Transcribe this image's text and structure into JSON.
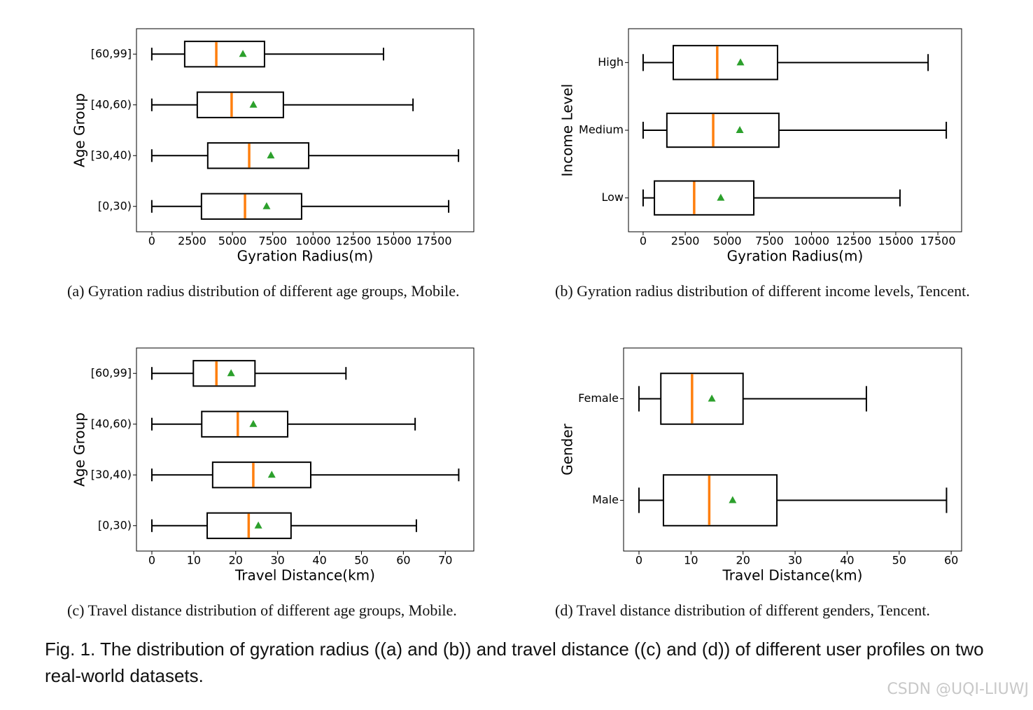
{
  "chart_data": [
    {
      "type": "box",
      "orientation": "horizontal",
      "x_label": "Gyration Radius(m)",
      "y_label": "Age Group",
      "caption": "(a)  Gyration radius distribution of different age groups, Mobile.",
      "categories": [
        "[0,30)",
        "[30,40)",
        "[40,60)",
        "[60,99]"
      ],
      "boxes": [
        {
          "min": 0,
          "q1": 3080,
          "median": 5780,
          "q3": 9290,
          "max": 18410,
          "mean": 7120
        },
        {
          "min": 0,
          "q1": 3470,
          "median": 6040,
          "q3": 9730,
          "max": 19020,
          "mean": 7380
        },
        {
          "min": 0,
          "q1": 2820,
          "median": 4950,
          "q3": 8160,
          "max": 16200,
          "mean": 6300
        },
        {
          "min": 0,
          "q1": 2040,
          "median": 4000,
          "q3": 6990,
          "max": 14370,
          "mean": 5650
        }
      ],
      "xlim": [
        -950,
        19970
      ],
      "xticks": [
        0,
        2500,
        5000,
        7500,
        10000,
        12500,
        15000,
        17500
      ],
      "box_color": "#000000",
      "median_color": "#ff7f0e",
      "mean_color": "#2ca02c"
    },
    {
      "type": "box",
      "orientation": "horizontal",
      "x_label": "Gyration Radius(m)",
      "y_label": "Income Level",
      "caption": "(b)  Gyration radius distribution of different income levels, Tencent.",
      "categories": [
        "Low",
        "Medium",
        "High"
      ],
      "boxes": [
        {
          "min": 0,
          "q1": 670,
          "median": 3030,
          "q3": 6570,
          "max": 15250,
          "mean": 4610
        },
        {
          "min": 0,
          "q1": 1410,
          "median": 4160,
          "q3": 8060,
          "max": 18000,
          "mean": 5740
        },
        {
          "min": 0,
          "q1": 1790,
          "median": 4400,
          "q3": 7980,
          "max": 16920,
          "mean": 5780
        }
      ],
      "xlim": [
        -870,
        18910
      ],
      "xticks": [
        0,
        2500,
        5000,
        7500,
        10000,
        12500,
        15000,
        17500
      ],
      "box_color": "#000000",
      "median_color": "#ff7f0e",
      "mean_color": "#2ca02c"
    },
    {
      "type": "box",
      "orientation": "horizontal",
      "x_label": "Travel Distance(km)",
      "y_label": "Age Group",
      "caption": "(c)  Travel distance distribution of different age groups, Mobile.",
      "categories": [
        "[0,30)",
        "[30,40)",
        "[40,60)",
        "[60,99]"
      ],
      "boxes": [
        {
          "min": 0,
          "q1": 13.2,
          "median": 23.1,
          "q3": 33.2,
          "max": 63.1,
          "mean": 25.4
        },
        {
          "min": 0,
          "q1": 14.5,
          "median": 24.2,
          "q3": 37.9,
          "max": 73.2,
          "mean": 28.6
        },
        {
          "min": 0,
          "q1": 11.9,
          "median": 20.5,
          "q3": 32.4,
          "max": 62.8,
          "mean": 24.2
        },
        {
          "min": 0,
          "q1": 9.9,
          "median": 15.4,
          "q3": 24.6,
          "max": 46.3,
          "mean": 18.9
        }
      ],
      "xlim": [
        -3.67,
        76.8
      ],
      "xticks": [
        0,
        10,
        20,
        30,
        40,
        50,
        60,
        70
      ],
      "box_color": "#000000",
      "median_color": "#ff7f0e",
      "mean_color": "#2ca02c"
    },
    {
      "type": "box",
      "orientation": "horizontal",
      "x_label": "Travel Distance(km)",
      "y_label": "Gender",
      "caption": "(d)  Travel distance distribution of different genders, Tencent.",
      "categories": [
        "Male",
        "Female"
      ],
      "boxes": [
        {
          "min": 0,
          "q1": 4.7,
          "median": 13.5,
          "q3": 26.5,
          "max": 59.1,
          "mean": 18.0
        },
        {
          "min": 0,
          "q1": 4.2,
          "median": 10.2,
          "q3": 20.0,
          "max": 43.7,
          "mean": 14.0
        }
      ],
      "xlim": [
        -2.96,
        62.0
      ],
      "xticks": [
        0,
        10,
        20,
        30,
        40,
        50,
        60
      ],
      "box_color": "#000000",
      "median_color": "#ff7f0e",
      "mean_color": "#2ca02c"
    }
  ],
  "figure_caption": "Fig. 1.  The distribution of gyration radius ((a) and (b)) and travel distance ((c) and (d)) of different user profiles on two real-world datasets.",
  "watermark": "CSDN @UQI-LIUWJ"
}
